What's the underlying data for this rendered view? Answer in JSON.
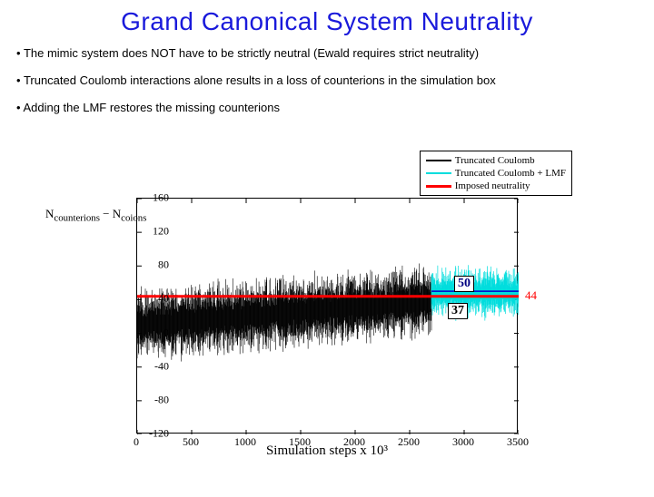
{
  "title": "Grand Canonical System Neutrality",
  "bullets": [
    "The mimic system does NOT have to be strictly neutral (Ewald requires strict neutrality)",
    "Truncated Coulomb interactions alone results in a loss of counterions in the simulation box",
    "Adding the LMF restores the missing counterions"
  ],
  "chart": {
    "type": "line",
    "xlim": [
      0,
      3500
    ],
    "ylim": [
      -120,
      160
    ],
    "xtick_step": 500,
    "ytick_step": 40,
    "xticks": [
      0,
      500,
      1000,
      1500,
      2000,
      2500,
      3000,
      3500
    ],
    "yticks": [
      -120,
      -80,
      -40,
      0,
      40,
      80,
      120,
      160
    ],
    "xlabel": "Simulation steps x 10³",
    "ylabel_tex": "N_counterions − N_coions",
    "legend": [
      {
        "label": "Truncated Coulomb",
        "color": "#000000"
      },
      {
        "label": "Truncated Coulomb + LMF",
        "color": "#00dddd"
      },
      {
        "label": "Imposed neutrality",
        "color": "#ff0000"
      }
    ],
    "neutrality_line": {
      "y": 44,
      "color": "#ff0000",
      "width": 3
    },
    "annotation_black": {
      "value": "37",
      "box": true
    },
    "annotation_cyan": {
      "value": "50",
      "box": true,
      "color": "#000080"
    },
    "annotation_red": {
      "value": "44",
      "color": "#ff0000"
    },
    "series_black": {
      "color": "#000000",
      "x_range": [
        0,
        2700
      ],
      "mean_start": 10,
      "mean_end": 38,
      "noise_amplitude": 55,
      "description": "very dense noisy trace drifting upward"
    },
    "series_cyan": {
      "color": "#00dddd",
      "x_range": [
        2700,
        3500
      ],
      "mean": 48,
      "noise_amplitude": 42,
      "description": "noisy trace centered near 50"
    },
    "background_color": "#ffffff",
    "axis_color": "#000000",
    "font_family": "Times New Roman",
    "tick_fontsize": 12,
    "label_fontsize": 15,
    "legend_fontsize": 11
  },
  "colors": {
    "title": "#1a1adb",
    "bullet_text": "#000000"
  }
}
